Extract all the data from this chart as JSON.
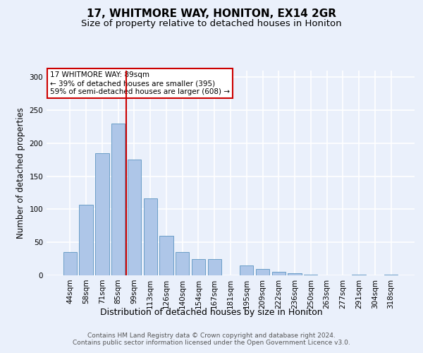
{
  "title": "17, WHITMORE WAY, HONITON, EX14 2GR",
  "subtitle": "Size of property relative to detached houses in Honiton",
  "xlabel": "Distribution of detached houses by size in Honiton",
  "ylabel": "Number of detached properties",
  "categories": [
    "44sqm",
    "58sqm",
    "71sqm",
    "85sqm",
    "99sqm",
    "113sqm",
    "126sqm",
    "140sqm",
    "154sqm",
    "167sqm",
    "181sqm",
    "195sqm",
    "209sqm",
    "222sqm",
    "236sqm",
    "250sqm",
    "263sqm",
    "277sqm",
    "291sqm",
    "304sqm",
    "318sqm"
  ],
  "values": [
    35,
    107,
    185,
    230,
    175,
    117,
    60,
    35,
    25,
    25,
    0,
    15,
    10,
    5,
    3,
    1,
    0,
    0,
    1,
    0,
    1
  ],
  "bar_color": "#aec6e8",
  "bar_edge_color": "#6b9ec7",
  "bg_color": "#eaf0fb",
  "grid_color": "#ffffff",
  "annotation_line_label": "17 WHITMORE WAY: 89sqm",
  "annotation_line2": "← 39% of detached houses are smaller (395)",
  "annotation_line3": "59% of semi-detached houses are larger (608) →",
  "annotation_box_color": "#ffffff",
  "annotation_border_color": "#cc0000",
  "vline_color": "#cc0000",
  "vline_x": 3.5,
  "ylim": [
    0,
    310
  ],
  "yticks": [
    0,
    50,
    100,
    150,
    200,
    250,
    300
  ],
  "footer": "Contains HM Land Registry data © Crown copyright and database right 2024.\nContains public sector information licensed under the Open Government Licence v3.0.",
  "title_fontsize": 11,
  "subtitle_fontsize": 9.5,
  "xlabel_fontsize": 9,
  "ylabel_fontsize": 8.5,
  "tick_fontsize": 7.5,
  "footer_fontsize": 6.5,
  "annot_fontsize": 7.5
}
